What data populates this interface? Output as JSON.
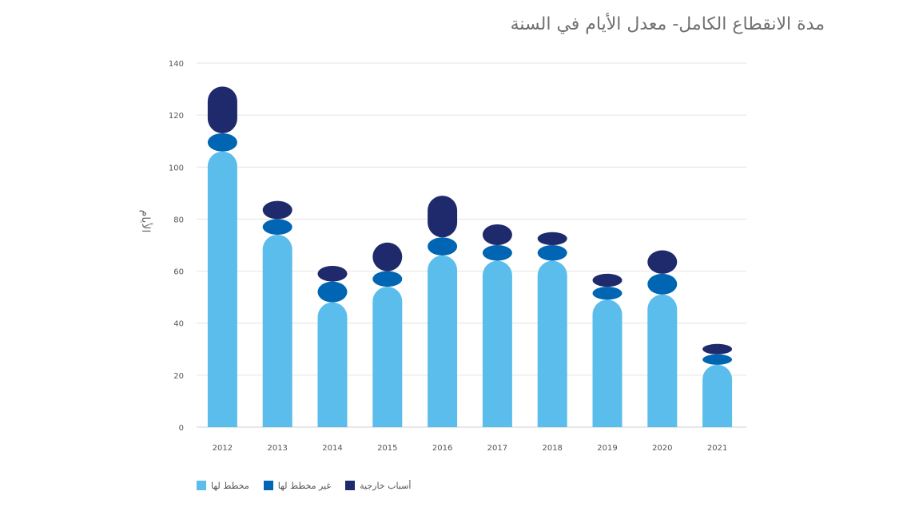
{
  "chart_data": {
    "type": "bar",
    "stacked": true,
    "title": "مدة الانقطاع الكامل- معدل الأيام في السنة",
    "ylabel": "الأيام",
    "xlabel": "",
    "ylim": [
      0,
      140
    ],
    "yticks": [
      0,
      20,
      40,
      60,
      80,
      100,
      120,
      140
    ],
    "grid": true,
    "legend_position": "bottom-left",
    "categories": [
      "2012",
      "2013",
      "2014",
      "2015",
      "2016",
      "2017",
      "2018",
      "2019",
      "2020",
      "2021"
    ],
    "series": [
      {
        "name": "مخطط لها",
        "color": "#5bbdeb",
        "values": [
          106,
          74,
          48,
          54,
          66,
          64,
          64,
          49,
          51,
          24
        ]
      },
      {
        "name": "غير مخطط لها",
        "color": "#0066b3",
        "values": [
          7,
          6,
          8,
          6,
          7,
          6,
          6,
          5,
          8,
          4
        ]
      },
      {
        "name": "أسباب خارجية",
        "color": "#1e2a6b",
        "values": [
          18,
          7,
          6,
          11,
          16,
          8,
          5,
          5,
          9,
          4
        ]
      }
    ]
  }
}
